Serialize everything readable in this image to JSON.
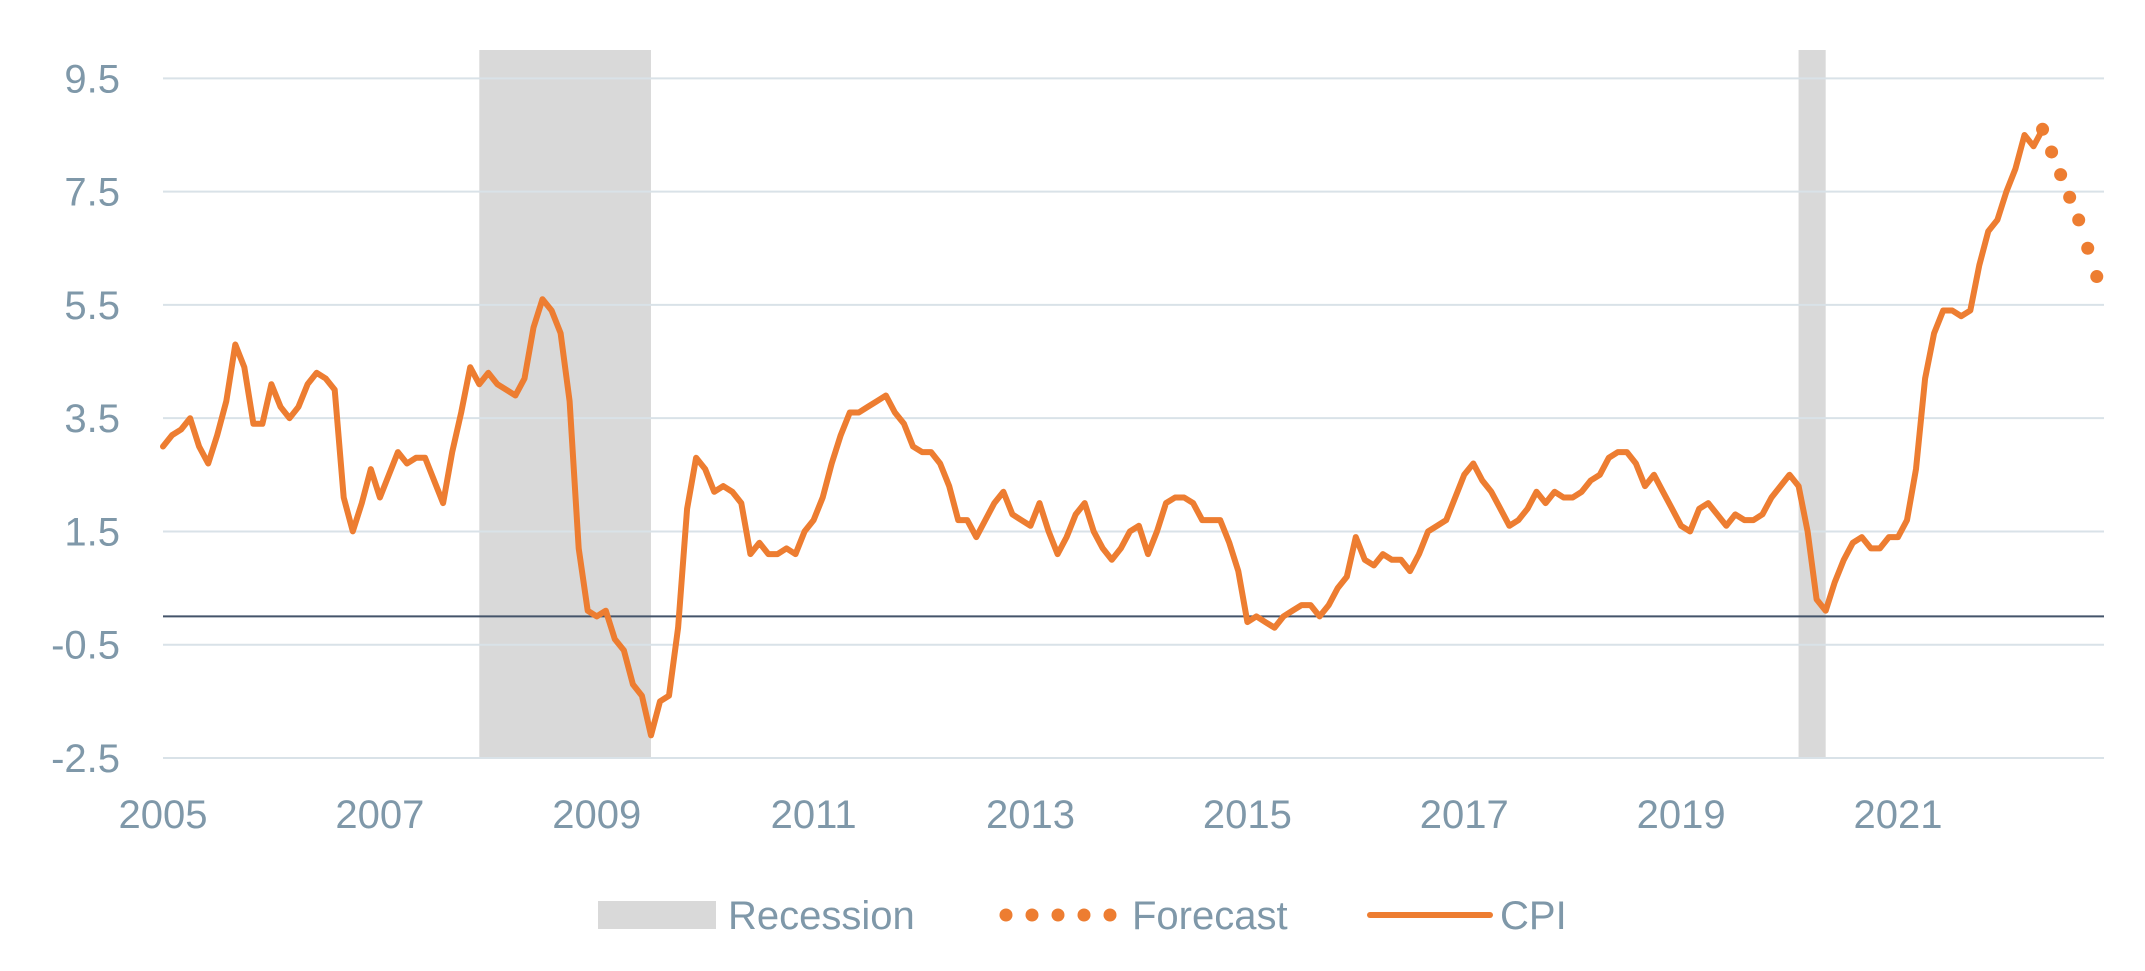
{
  "chart_data": {
    "type": "line",
    "title": "",
    "xlabel": "",
    "ylabel": "",
    "xlim": [
      2005.0,
      2022.9
    ],
    "ylim": [
      -2.5,
      10.0
    ],
    "x_ticks": [
      2005,
      2007,
      2009,
      2011,
      2013,
      2015,
      2017,
      2019,
      2021
    ],
    "y_ticks": [
      -2.5,
      -0.5,
      1.5,
      3.5,
      5.5,
      7.5,
      9.5
    ],
    "y_tick_labels": [
      "-2.5",
      "-0.5",
      "1.5",
      "3.5",
      "5.5",
      "7.5",
      "9.5"
    ],
    "x_tick_labels": [
      "2005",
      "2007",
      "2009",
      "2011",
      "2013",
      "2015",
      "2017",
      "2019",
      "2021"
    ],
    "grid": "horizontal",
    "baseline_y": 0,
    "legend": {
      "position": "bottom",
      "entries": [
        {
          "label": "Recession",
          "style": "shaded band",
          "color": "#d9d9d9"
        },
        {
          "label": "Forecast",
          "style": "dotted",
          "color": "#ed7d31"
        },
        {
          "label": "CPI",
          "style": "solid",
          "color": "#ed7d31"
        }
      ]
    },
    "recessions": [
      {
        "start": "2007-12",
        "end": "2009-06"
      },
      {
        "start": "2020-02",
        "end": "2020-04"
      }
    ],
    "series": [
      {
        "name": "CPI",
        "style": "solid",
        "color": "#ed7d31",
        "points": [
          [
            "2005-01",
            3.0
          ],
          [
            "2005-02",
            3.2
          ],
          [
            "2005-03",
            3.3
          ],
          [
            "2005-04",
            3.5
          ],
          [
            "2005-05",
            3.0
          ],
          [
            "2005-06",
            2.7
          ],
          [
            "2005-07",
            3.2
          ],
          [
            "2005-08",
            3.8
          ],
          [
            "2005-09",
            4.8
          ],
          [
            "2005-10",
            4.4
          ],
          [
            "2005-11",
            3.4
          ],
          [
            "2005-12",
            3.4
          ],
          [
            "2006-01",
            4.1
          ],
          [
            "2006-02",
            3.7
          ],
          [
            "2006-03",
            3.5
          ],
          [
            "2006-04",
            3.7
          ],
          [
            "2006-05",
            4.1
          ],
          [
            "2006-06",
            4.3
          ],
          [
            "2006-07",
            4.2
          ],
          [
            "2006-08",
            4.0
          ],
          [
            "2006-09",
            2.1
          ],
          [
            "2006-10",
            1.5
          ],
          [
            "2006-11",
            2.0
          ],
          [
            "2006-12",
            2.6
          ],
          [
            "2007-01",
            2.1
          ],
          [
            "2007-02",
            2.5
          ],
          [
            "2007-03",
            2.9
          ],
          [
            "2007-04",
            2.7
          ],
          [
            "2007-05",
            2.8
          ],
          [
            "2007-06",
            2.8
          ],
          [
            "2007-07",
            2.4
          ],
          [
            "2007-08",
            2.0
          ],
          [
            "2007-09",
            2.9
          ],
          [
            "2007-10",
            3.6
          ],
          [
            "2007-11",
            4.4
          ],
          [
            "2007-12",
            4.1
          ],
          [
            "2008-01",
            4.3
          ],
          [
            "2008-02",
            4.1
          ],
          [
            "2008-03",
            4.0
          ],
          [
            "2008-04",
            3.9
          ],
          [
            "2008-05",
            4.2
          ],
          [
            "2008-06",
            5.1
          ],
          [
            "2008-07",
            5.6
          ],
          [
            "2008-08",
            5.4
          ],
          [
            "2008-09",
            5.0
          ],
          [
            "2008-10",
            3.8
          ],
          [
            "2008-11",
            1.2
          ],
          [
            "2008-12",
            0.1
          ],
          [
            "2009-01",
            0.0
          ],
          [
            "2009-02",
            0.1
          ],
          [
            "2009-03",
            -0.4
          ],
          [
            "2009-04",
            -0.6
          ],
          [
            "2009-05",
            -1.2
          ],
          [
            "2009-06",
            -1.4
          ],
          [
            "2009-07",
            -2.1
          ],
          [
            "2009-08",
            -1.5
          ],
          [
            "2009-09",
            -1.4
          ],
          [
            "2009-10",
            -0.2
          ],
          [
            "2009-11",
            1.9
          ],
          [
            "2009-12",
            2.8
          ],
          [
            "2010-01",
            2.6
          ],
          [
            "2010-02",
            2.2
          ],
          [
            "2010-03",
            2.3
          ],
          [
            "2010-04",
            2.2
          ],
          [
            "2010-05",
            2.0
          ],
          [
            "2010-06",
            1.1
          ],
          [
            "2010-07",
            1.3
          ],
          [
            "2010-08",
            1.1
          ],
          [
            "2010-09",
            1.1
          ],
          [
            "2010-10",
            1.2
          ],
          [
            "2010-11",
            1.1
          ],
          [
            "2010-12",
            1.5
          ],
          [
            "2011-01",
            1.7
          ],
          [
            "2011-02",
            2.1
          ],
          [
            "2011-03",
            2.7
          ],
          [
            "2011-04",
            3.2
          ],
          [
            "2011-05",
            3.6
          ],
          [
            "2011-06",
            3.6
          ],
          [
            "2011-07",
            3.7
          ],
          [
            "2011-08",
            3.8
          ],
          [
            "2011-09",
            3.9
          ],
          [
            "2011-10",
            3.6
          ],
          [
            "2011-11",
            3.4
          ],
          [
            "2011-12",
            3.0
          ],
          [
            "2012-01",
            2.9
          ],
          [
            "2012-02",
            2.9
          ],
          [
            "2012-03",
            2.7
          ],
          [
            "2012-04",
            2.3
          ],
          [
            "2012-05",
            1.7
          ],
          [
            "2012-06",
            1.7
          ],
          [
            "2012-07",
            1.4
          ],
          [
            "2012-08",
            1.7
          ],
          [
            "2012-09",
            2.0
          ],
          [
            "2012-10",
            2.2
          ],
          [
            "2012-11",
            1.8
          ],
          [
            "2012-12",
            1.7
          ],
          [
            "2013-01",
            1.6
          ],
          [
            "2013-02",
            2.0
          ],
          [
            "2013-03",
            1.5
          ],
          [
            "2013-04",
            1.1
          ],
          [
            "2013-05",
            1.4
          ],
          [
            "2013-06",
            1.8
          ],
          [
            "2013-07",
            2.0
          ],
          [
            "2013-08",
            1.5
          ],
          [
            "2013-09",
            1.2
          ],
          [
            "2013-10",
            1.0
          ],
          [
            "2013-11",
            1.2
          ],
          [
            "2013-12",
            1.5
          ],
          [
            "2014-01",
            1.6
          ],
          [
            "2014-02",
            1.1
          ],
          [
            "2014-03",
            1.5
          ],
          [
            "2014-04",
            2.0
          ],
          [
            "2014-05",
            2.1
          ],
          [
            "2014-06",
            2.1
          ],
          [
            "2014-07",
            2.0
          ],
          [
            "2014-08",
            1.7
          ],
          [
            "2014-09",
            1.7
          ],
          [
            "2014-10",
            1.7
          ],
          [
            "2014-11",
            1.3
          ],
          [
            "2014-12",
            0.8
          ],
          [
            "2015-01",
            -0.1
          ],
          [
            "2015-02",
            0.0
          ],
          [
            "2015-03",
            -0.1
          ],
          [
            "2015-04",
            -0.2
          ],
          [
            "2015-05",
            0.0
          ],
          [
            "2015-06",
            0.1
          ],
          [
            "2015-07",
            0.2
          ],
          [
            "2015-08",
            0.2
          ],
          [
            "2015-09",
            0.0
          ],
          [
            "2015-10",
            0.2
          ],
          [
            "2015-11",
            0.5
          ],
          [
            "2015-12",
            0.7
          ],
          [
            "2016-01",
            1.4
          ],
          [
            "2016-02",
            1.0
          ],
          [
            "2016-03",
            0.9
          ],
          [
            "2016-04",
            1.1
          ],
          [
            "2016-05",
            1.0
          ],
          [
            "2016-06",
            1.0
          ],
          [
            "2016-07",
            0.8
          ],
          [
            "2016-08",
            1.1
          ],
          [
            "2016-09",
            1.5
          ],
          [
            "2016-10",
            1.6
          ],
          [
            "2016-11",
            1.7
          ],
          [
            "2016-12",
            2.1
          ],
          [
            "2017-01",
            2.5
          ],
          [
            "2017-02",
            2.7
          ],
          [
            "2017-03",
            2.4
          ],
          [
            "2017-04",
            2.2
          ],
          [
            "2017-05",
            1.9
          ],
          [
            "2017-06",
            1.6
          ],
          [
            "2017-07",
            1.7
          ],
          [
            "2017-08",
            1.9
          ],
          [
            "2017-09",
            2.2
          ],
          [
            "2017-10",
            2.0
          ],
          [
            "2017-11",
            2.2
          ],
          [
            "2017-12",
            2.1
          ],
          [
            "2018-01",
            2.1
          ],
          [
            "2018-02",
            2.2
          ],
          [
            "2018-03",
            2.4
          ],
          [
            "2018-04",
            2.5
          ],
          [
            "2018-05",
            2.8
          ],
          [
            "2018-06",
            2.9
          ],
          [
            "2018-07",
            2.9
          ],
          [
            "2018-08",
            2.7
          ],
          [
            "2018-09",
            2.3
          ],
          [
            "2018-10",
            2.5
          ],
          [
            "2018-11",
            2.2
          ],
          [
            "2018-12",
            1.9
          ],
          [
            "2019-01",
            1.6
          ],
          [
            "2019-02",
            1.5
          ],
          [
            "2019-03",
            1.9
          ],
          [
            "2019-04",
            2.0
          ],
          [
            "2019-05",
            1.8
          ],
          [
            "2019-06",
            1.6
          ],
          [
            "2019-07",
            1.8
          ],
          [
            "2019-08",
            1.7
          ],
          [
            "2019-09",
            1.7
          ],
          [
            "2019-10",
            1.8
          ],
          [
            "2019-11",
            2.1
          ],
          [
            "2019-12",
            2.3
          ],
          [
            "2020-01",
            2.5
          ],
          [
            "2020-02",
            2.3
          ],
          [
            "2020-03",
            1.5
          ],
          [
            "2020-04",
            0.3
          ],
          [
            "2020-05",
            0.1
          ],
          [
            "2020-06",
            0.6
          ],
          [
            "2020-07",
            1.0
          ],
          [
            "2020-08",
            1.3
          ],
          [
            "2020-09",
            1.4
          ],
          [
            "2020-10",
            1.2
          ],
          [
            "2020-11",
            1.2
          ],
          [
            "2020-12",
            1.4
          ],
          [
            "2021-01",
            1.4
          ],
          [
            "2021-02",
            1.7
          ],
          [
            "2021-03",
            2.6
          ],
          [
            "2021-04",
            4.2
          ],
          [
            "2021-05",
            5.0
          ],
          [
            "2021-06",
            5.4
          ],
          [
            "2021-07",
            5.4
          ],
          [
            "2021-08",
            5.3
          ],
          [
            "2021-09",
            5.4
          ],
          [
            "2021-10",
            6.2
          ],
          [
            "2021-11",
            6.8
          ],
          [
            "2021-12",
            7.0
          ],
          [
            "2022-01",
            7.5
          ],
          [
            "2022-02",
            7.9
          ],
          [
            "2022-03",
            8.5
          ],
          [
            "2022-04",
            8.3
          ],
          [
            "2022-05",
            8.6
          ]
        ]
      },
      {
        "name": "Forecast",
        "style": "dotted",
        "color": "#ed7d31",
        "points": [
          [
            "2022-05",
            8.6
          ],
          [
            "2022-06",
            8.2
          ],
          [
            "2022-07",
            7.8
          ],
          [
            "2022-08",
            7.4
          ],
          [
            "2022-09",
            7.0
          ],
          [
            "2022-10",
            6.5
          ],
          [
            "2022-11",
            6.0
          ]
        ]
      }
    ]
  }
}
